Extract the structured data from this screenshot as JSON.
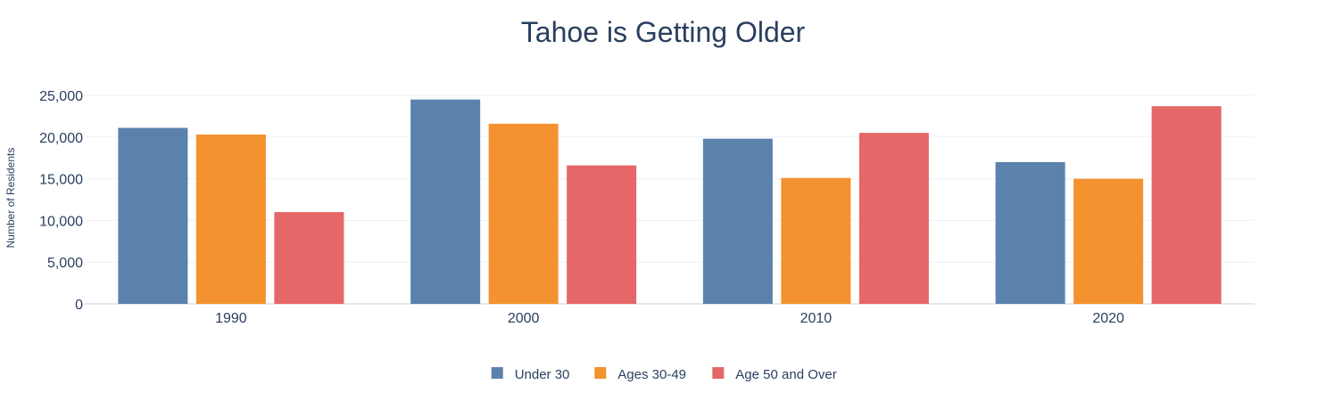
{
  "chart_data": {
    "type": "bar",
    "title": "Tahoe is Getting Older",
    "xlabel": "",
    "ylabel": "Number of Residents",
    "categories": [
      "1990",
      "2000",
      "2010",
      "2020"
    ],
    "ylim": [
      0,
      25000
    ],
    "yticks": [
      0,
      5000,
      10000,
      15000,
      20000,
      25000
    ],
    "ytick_labels": [
      "0",
      "5,000",
      "10,000",
      "15,000",
      "20,000",
      "25,000"
    ],
    "grid": true,
    "legend_position": "bottom-center",
    "series": [
      {
        "name": "Under 30",
        "color": "#5b82ad",
        "values": [
          21100,
          24500,
          19800,
          17000
        ]
      },
      {
        "name": "Ages 30-49",
        "color": "#f3922e",
        "values": [
          20300,
          21600,
          15100,
          15000
        ]
      },
      {
        "name": "Age 50 and Over",
        "color": "#e66767",
        "values": [
          11000,
          16600,
          20500,
          23700
        ]
      }
    ]
  }
}
